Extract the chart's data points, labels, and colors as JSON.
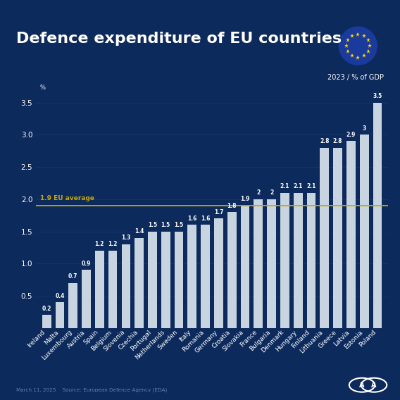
{
  "title": "Defence expenditure of EU countries",
  "subtitle": "2023 / % of GDP",
  "ylabel": "%",
  "background_color": "#0d2a5c",
  "bar_color": "#c8d4e0",
  "avg_line_value": 1.9,
  "avg_line_label": "1.9 EU average",
  "avg_line_color": "#c8a800",
  "ylim": [
    0,
    3.85
  ],
  "yticks": [
    0.5,
    1.0,
    1.5,
    2.0,
    2.5,
    3.0,
    3.5
  ],
  "countries": [
    "Ireland",
    "Malta",
    "Luxembourg",
    "Austria",
    "Spain",
    "Belgium",
    "Slovenia",
    "Czechia",
    "Portugal",
    "Netherlands",
    "Sweden",
    "Italy",
    "Romania",
    "Germany",
    "Croatia",
    "Slovakia",
    "France",
    "Bulgaria",
    "Denmark",
    "Hungary",
    "Finland",
    "Lithuania",
    "Greece",
    "Latvia",
    "Estonia",
    "Poland"
  ],
  "values": [
    0.2,
    0.4,
    0.7,
    0.9,
    1.2,
    1.2,
    1.3,
    1.4,
    1.5,
    1.5,
    1.5,
    1.6,
    1.6,
    1.7,
    1.8,
    1.9,
    2.0,
    2.0,
    2.1,
    2.1,
    2.1,
    2.8,
    2.8,
    2.9,
    3.0,
    3.5
  ],
  "value_labels": [
    "0.2",
    "0.4",
    "0.7",
    "0.9",
    "1.2",
    "1.2",
    "1.3",
    "1.4",
    "1.5",
    "1.5",
    "1.5",
    "1.6",
    "1.6",
    "1.7",
    "1.8",
    "1.9",
    "2",
    "2",
    "2.1",
    "2.1",
    "2.1",
    "2.8",
    "2.8",
    "2.9",
    "3",
    "3.5"
  ],
  "footer_text": "March 11, 2025    Source: European Defence Agency (EDA)",
  "footer_color": "#6a7fa8",
  "text_color": "#ffffff",
  "grid_color": "#1a3870",
  "title_fontsize": 16,
  "tick_fontsize": 7.5,
  "label_fontsize": 6.5,
  "value_fontsize": 5.5
}
